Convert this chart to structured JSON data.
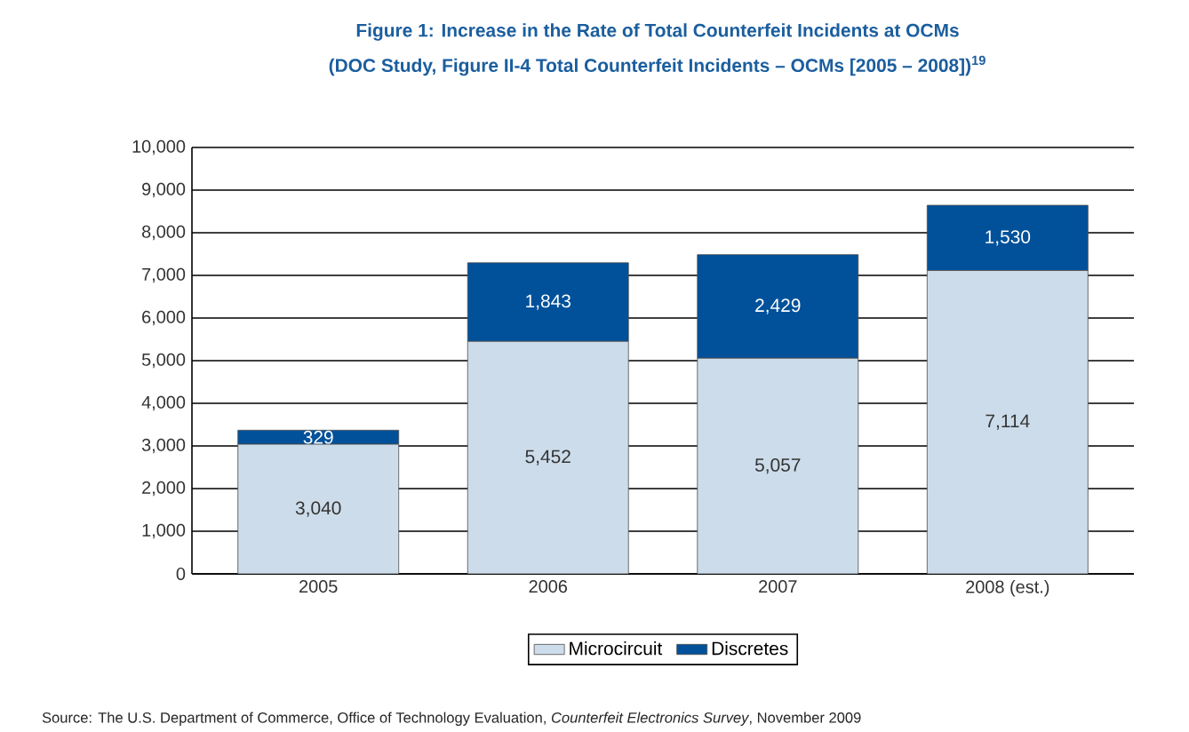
{
  "chart_data": {
    "type": "bar",
    "stacked": true,
    "title": "Figure 1: Increase in the Rate of Total Counterfeit Incidents at OCMs",
    "subtitle": "(DOC Study, Figure II-4 Total Counterfeit Incidents – OCMs [2005 – 2008])$^{19}$",
    "categories": [
      "2005",
      "2006",
      "2007",
      "2008 (est.)"
    ],
    "series": [
      {
        "name": "Microcircuit",
        "color": "#ccdcea",
        "values": [
          3040,
          5452,
          5057,
          7114
        ],
        "value_labels": [
          "3,040",
          "5,452",
          "5,057",
          "7,114"
        ]
      },
      {
        "name": "Discretes",
        "color": "#00519a",
        "values": [
          329,
          1843,
          2429,
          1530
        ],
        "value_labels": [
          "329",
          "1,843",
          "2,429",
          "1,530"
        ]
      }
    ],
    "ylim": [
      0,
      10000
    ],
    "yticks": [
      0,
      {
        "value": 1000,
        "label": "1,000"
      },
      {
        "value": 2000,
        "label": "2,000"
      },
      {
        "value": 3000,
        "label": "3,000"
      },
      {
        "value": 4000,
        "label": "4,000"
      },
      {
        "value": 5000,
        "label": "5,000"
      },
      {
        "value": 6000,
        "label": "6,000"
      },
      {
        "value": 7000,
        "label": "7,000"
      },
      {
        "value": 8000,
        "label": "8,000"
      },
      {
        "value": 9000,
        "label": "9,000"
      },
      {
        "value": 10000,
        "label": "10,000"
      }
    ],
    "grid": "y",
    "legend": "bottom",
    "annotations": [
      "Source: The U.S. Department of Commerce, Office of Technology Evaluation, *Counterfeit Electronics Survey*, November 2009"
    ]
  }
}
